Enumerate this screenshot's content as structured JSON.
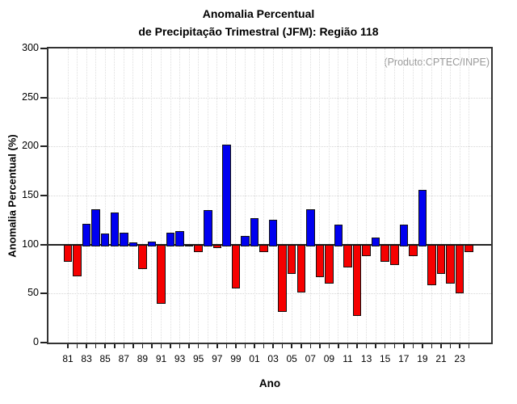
{
  "title": {
    "line1": "Anomalia Percentual",
    "line2": "de Precipitação Trimestral (JFM): Região 118"
  },
  "annotation": "(Produto:CPTEC/INPE)",
  "chart_data": {
    "type": "bar",
    "title": "Anomalia Percentual de Precipitação Trimestral (JFM): Região 118",
    "xlabel": "Ano",
    "ylabel": "Anomalia Percentual (%)",
    "ylim": [
      0,
      300
    ],
    "yticks": [
      0,
      50,
      100,
      150,
      200,
      250,
      300
    ],
    "ygrid": [
      50,
      100,
      150,
      200,
      250
    ],
    "baseline": 100,
    "x_label_step": 2,
    "grid": "dotted, light gray, vertical line at every year",
    "legend": "none",
    "colors": {
      "above_baseline": "#0000f0",
      "below_baseline": "#f50000",
      "bar_outline": "#111111",
      "baseline_line": "#222222",
      "annotation_text": "#9a9a9a"
    },
    "categories": [
      "81",
      "82",
      "83",
      "84",
      "85",
      "86",
      "87",
      "88",
      "89",
      "90",
      "91",
      "92",
      "93",
      "94",
      "95",
      "96",
      "97",
      "98",
      "99",
      "00",
      "01",
      "02",
      "03",
      "04",
      "05",
      "06",
      "07",
      "08",
      "09",
      "10",
      "11",
      "12",
      "13",
      "14",
      "15",
      "16",
      "17",
      "18",
      "19",
      "20",
      "21",
      "22",
      "23",
      "24"
    ],
    "values": [
      84,
      69,
      121,
      136,
      111,
      133,
      112,
      102,
      77,
      103,
      41,
      112,
      114,
      100,
      94,
      135,
      98,
      202,
      57,
      109,
      127,
      94,
      125,
      33,
      72,
      53,
      136,
      68,
      62,
      120,
      78,
      29,
      90,
      107,
      84,
      81,
      120,
      90,
      156,
      60,
      72,
      62,
      52,
      94
    ]
  }
}
